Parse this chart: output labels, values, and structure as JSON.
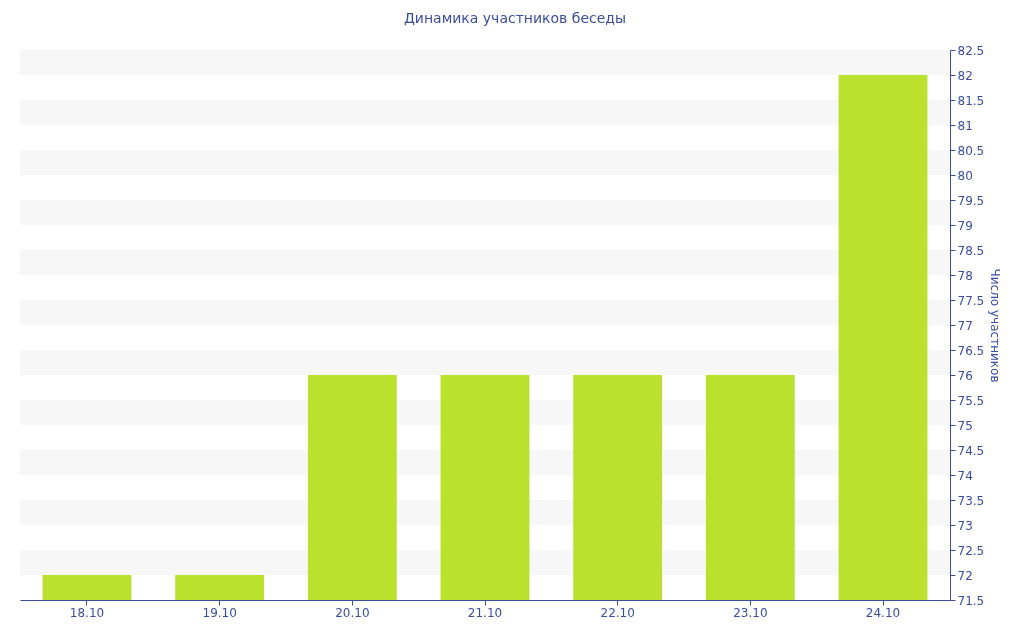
{
  "chart_data": {
    "type": "bar",
    "title": "Динамика участников беседы",
    "ylabel": "Число участников",
    "categories": [
      "18.10",
      "19.10",
      "20.10",
      "21.10",
      "22.10",
      "23.10",
      "24.10"
    ],
    "values": [
      72,
      72,
      76,
      76,
      76,
      76,
      82
    ],
    "color": "#bbe12f",
    "ylim": [
      71.5,
      82.5
    ],
    "yticks": [
      71.5,
      72,
      72.5,
      73,
      73.5,
      74,
      74.5,
      75,
      75.5,
      76,
      76.5,
      77,
      77.5,
      78,
      78.5,
      79,
      79.5,
      80,
      80.5,
      81,
      81.5,
      82,
      82.5
    ],
    "bands": [
      {
        "axis": "y",
        "from": 82,
        "to": 82.5,
        "color": "#f7f7f7"
      },
      {
        "axis": "y",
        "from": 81,
        "to": 81.5,
        "color": "#f7f7f7"
      },
      {
        "axis": "y",
        "from": 80,
        "to": 80.5,
        "color": "#f7f7f7"
      },
      {
        "axis": "y",
        "from": 79,
        "to": 79.5,
        "color": "#f7f7f7"
      },
      {
        "axis": "y",
        "from": 78,
        "to": 78.5,
        "color": "#f7f7f7"
      },
      {
        "axis": "y",
        "from": 77,
        "to": 77.5,
        "color": "#f7f7f7"
      },
      {
        "axis": "y",
        "from": 76,
        "to": 76.5,
        "color": "#f7f7f7"
      },
      {
        "axis": "y",
        "from": 75,
        "to": 75.5,
        "color": "#f7f7f7"
      },
      {
        "axis": "y",
        "from": 74,
        "to": 74.5,
        "color": "#f7f7f7"
      },
      {
        "axis": "y",
        "from": 73,
        "to": 73.5,
        "color": "#f7f7f7"
      },
      {
        "axis": "y",
        "from": 72,
        "to": 72.5,
        "color": "#f7f7f7"
      }
    ]
  }
}
